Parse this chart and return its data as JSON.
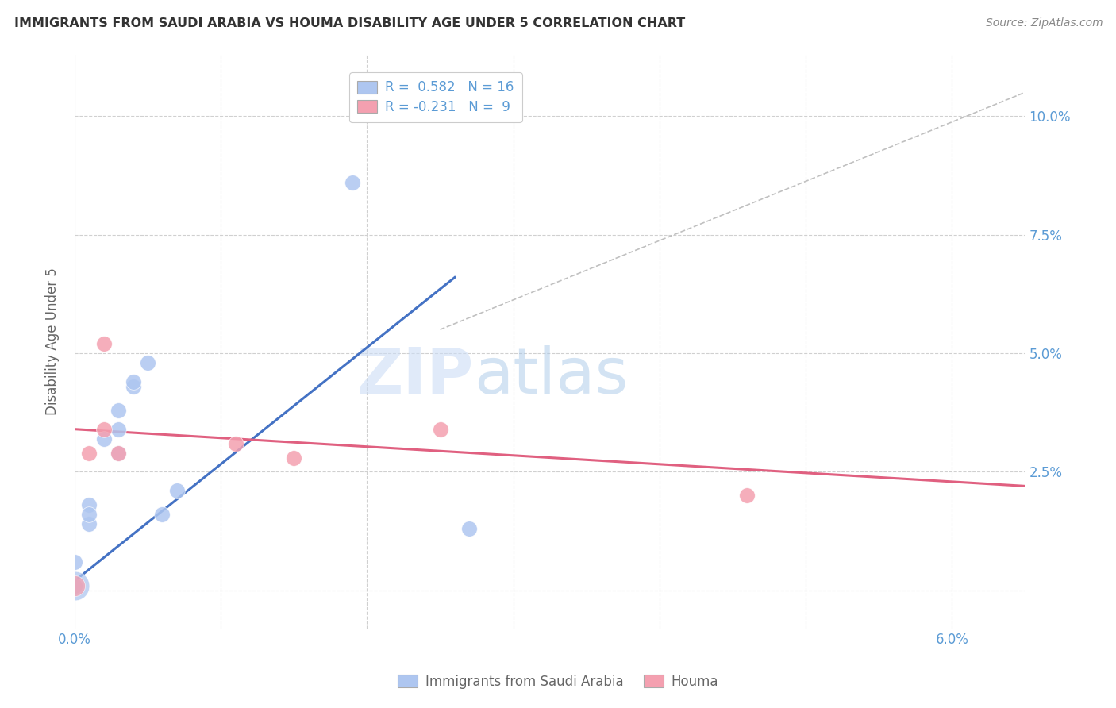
{
  "title": "IMMIGRANTS FROM SAUDI ARABIA VS HOUMA DISABILITY AGE UNDER 5 CORRELATION CHART",
  "source": "Source: ZipAtlas.com",
  "ylabel": "Disability Age Under 5",
  "xlim": [
    0.0,
    0.065
  ],
  "ylim": [
    -0.008,
    0.113
  ],
  "x_tick_positions": [
    0.0,
    0.01,
    0.02,
    0.03,
    0.04,
    0.05,
    0.06
  ],
  "x_tick_labels": [
    "0.0%",
    "",
    "",
    "",
    "",
    "",
    "6.0%"
  ],
  "y_tick_positions": [
    0.0,
    0.025,
    0.05,
    0.075,
    0.1
  ],
  "y_tick_labels": [
    "",
    "2.5%",
    "5.0%",
    "7.5%",
    "10.0%"
  ],
  "legend_blue_label": "Immigrants from Saudi Arabia",
  "legend_pink_label": "Houma",
  "blue_points": [
    [
      0.0,
      0.001
    ],
    [
      0.0,
      0.006
    ],
    [
      0.001,
      0.014
    ],
    [
      0.001,
      0.018
    ],
    [
      0.001,
      0.016
    ],
    [
      0.002,
      0.032
    ],
    [
      0.003,
      0.029
    ],
    [
      0.003,
      0.034
    ],
    [
      0.003,
      0.038
    ],
    [
      0.004,
      0.043
    ],
    [
      0.004,
      0.044
    ],
    [
      0.005,
      0.048
    ],
    [
      0.006,
      0.016
    ],
    [
      0.007,
      0.021
    ],
    [
      0.019,
      0.086
    ],
    [
      0.027,
      0.013
    ]
  ],
  "pink_points": [
    [
      0.0,
      0.001
    ],
    [
      0.001,
      0.029
    ],
    [
      0.002,
      0.034
    ],
    [
      0.002,
      0.052
    ],
    [
      0.003,
      0.029
    ],
    [
      0.011,
      0.031
    ],
    [
      0.015,
      0.028
    ],
    [
      0.025,
      0.034
    ],
    [
      0.046,
      0.02
    ]
  ],
  "blue_line_x": [
    0.0,
    0.026
  ],
  "blue_line_y": [
    0.002,
    0.066
  ],
  "pink_line_x": [
    0.0,
    0.065
  ],
  "pink_line_y": [
    0.034,
    0.022
  ],
  "diagonal_line_x": [
    0.025,
    0.065
  ],
  "diagonal_line_y": [
    0.055,
    0.105
  ],
  "blue_color": "#aec6f0",
  "pink_color": "#f4a0b0",
  "blue_line_color": "#4472c4",
  "pink_line_color": "#e06080",
  "diagonal_color": "#c0c0c0",
  "background_color": "#ffffff",
  "watermark_zip": "ZIP",
  "watermark_atlas": "atlas",
  "tick_color": "#5b9bd5",
  "ylabel_color": "#666666",
  "title_color": "#333333",
  "source_color": "#888888"
}
